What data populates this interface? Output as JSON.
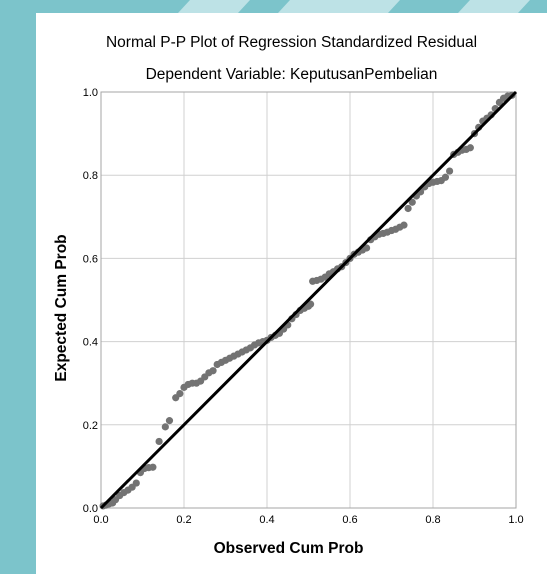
{
  "colors": {
    "frame_teal": "#7cc4cb",
    "frame_teal_light": "#bde2e6",
    "points": "#737373",
    "reference_line": "#000000",
    "grid": "#d0d0d0",
    "plot_border": "#a6a6a6"
  },
  "chart_data": {
    "type": "scatter",
    "title": "Normal P-P Plot of Regression Standardized Residual",
    "subtitle": "Dependent Variable: KeputusanPembelian",
    "xlabel": "Observed Cum Prob",
    "ylabel": "Expected Cum Prob",
    "xlim": [
      0,
      1
    ],
    "ylim": [
      0,
      1
    ],
    "xticks": [
      "0.0",
      "0.2",
      "0.4",
      "0.6",
      "0.8",
      "1.0"
    ],
    "yticks": [
      "0.0",
      "0.2",
      "0.4",
      "0.6",
      "0.8",
      "1.0"
    ],
    "grid": true,
    "reference_line": {
      "from": [
        0,
        0
      ],
      "to": [
        1,
        1
      ]
    },
    "points": [
      [
        0.005,
        0.005
      ],
      [
        0.012,
        0.007
      ],
      [
        0.02,
        0.01
      ],
      [
        0.028,
        0.012
      ],
      [
        0.035,
        0.02
      ],
      [
        0.045,
        0.03
      ],
      [
        0.055,
        0.037
      ],
      [
        0.065,
        0.043
      ],
      [
        0.075,
        0.05
      ],
      [
        0.085,
        0.06
      ],
      [
        0.095,
        0.085
      ],
      [
        0.105,
        0.095
      ],
      [
        0.115,
        0.097
      ],
      [
        0.125,
        0.098
      ],
      [
        0.14,
        0.16
      ],
      [
        0.155,
        0.195
      ],
      [
        0.165,
        0.21
      ],
      [
        0.18,
        0.265
      ],
      [
        0.19,
        0.275
      ],
      [
        0.2,
        0.29
      ],
      [
        0.21,
        0.297
      ],
      [
        0.22,
        0.3
      ],
      [
        0.23,
        0.3
      ],
      [
        0.24,
        0.305
      ],
      [
        0.25,
        0.315
      ],
      [
        0.26,
        0.325
      ],
      [
        0.27,
        0.33
      ],
      [
        0.28,
        0.345
      ],
      [
        0.29,
        0.35
      ],
      [
        0.3,
        0.355
      ],
      [
        0.31,
        0.36
      ],
      [
        0.32,
        0.365
      ],
      [
        0.33,
        0.37
      ],
      [
        0.34,
        0.375
      ],
      [
        0.35,
        0.38
      ],
      [
        0.36,
        0.385
      ],
      [
        0.37,
        0.392
      ],
      [
        0.38,
        0.397
      ],
      [
        0.39,
        0.4
      ],
      [
        0.4,
        0.403
      ],
      [
        0.41,
        0.41
      ],
      [
        0.42,
        0.415
      ],
      [
        0.43,
        0.42
      ],
      [
        0.44,
        0.43
      ],
      [
        0.45,
        0.44
      ],
      [
        0.46,
        0.455
      ],
      [
        0.47,
        0.465
      ],
      [
        0.48,
        0.475
      ],
      [
        0.49,
        0.48
      ],
      [
        0.5,
        0.485
      ],
      [
        0.505,
        0.49
      ],
      [
        0.51,
        0.545
      ],
      [
        0.52,
        0.547
      ],
      [
        0.53,
        0.55
      ],
      [
        0.54,
        0.555
      ],
      [
        0.55,
        0.563
      ],
      [
        0.56,
        0.568
      ],
      [
        0.57,
        0.575
      ],
      [
        0.58,
        0.58
      ],
      [
        0.59,
        0.59
      ],
      [
        0.6,
        0.6
      ],
      [
        0.61,
        0.61
      ],
      [
        0.62,
        0.615
      ],
      [
        0.63,
        0.62
      ],
      [
        0.64,
        0.625
      ],
      [
        0.65,
        0.645
      ],
      [
        0.66,
        0.652
      ],
      [
        0.67,
        0.658
      ],
      [
        0.68,
        0.66
      ],
      [
        0.69,
        0.663
      ],
      [
        0.7,
        0.667
      ],
      [
        0.71,
        0.67
      ],
      [
        0.72,
        0.675
      ],
      [
        0.73,
        0.68
      ],
      [
        0.74,
        0.72
      ],
      [
        0.75,
        0.735
      ],
      [
        0.76,
        0.75
      ],
      [
        0.77,
        0.76
      ],
      [
        0.78,
        0.772
      ],
      [
        0.79,
        0.78
      ],
      [
        0.8,
        0.783
      ],
      [
        0.81,
        0.785
      ],
      [
        0.82,
        0.787
      ],
      [
        0.83,
        0.795
      ],
      [
        0.84,
        0.81
      ],
      [
        0.85,
        0.85
      ],
      [
        0.86,
        0.855
      ],
      [
        0.87,
        0.86
      ],
      [
        0.88,
        0.862
      ],
      [
        0.89,
        0.866
      ],
      [
        0.9,
        0.9
      ],
      [
        0.91,
        0.915
      ],
      [
        0.92,
        0.93
      ],
      [
        0.93,
        0.937
      ],
      [
        0.94,
        0.945
      ],
      [
        0.95,
        0.96
      ],
      [
        0.96,
        0.975
      ],
      [
        0.97,
        0.985
      ],
      [
        0.98,
        0.99
      ],
      [
        0.99,
        0.992
      ]
    ]
  }
}
